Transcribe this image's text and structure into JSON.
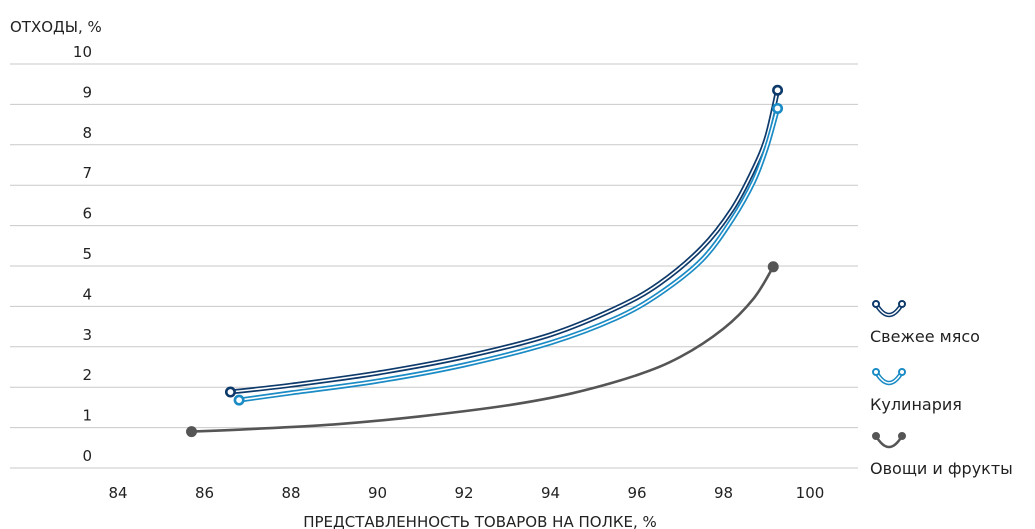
{
  "chart_data": {
    "type": "line",
    "ylabel": "ОТХОДЫ, %",
    "xlabel": "ПРЕДСТАВЛЕННОСТЬ ТОВАРОВ НА ПОЛКЕ, %",
    "xlim": [
      83,
      101
    ],
    "ylim": [
      0,
      10
    ],
    "x_ticks": [
      84,
      86,
      88,
      90,
      92,
      94,
      96,
      98,
      100
    ],
    "y_ticks": [
      0,
      1,
      2,
      3,
      4,
      5,
      6,
      7,
      8,
      9,
      10
    ],
    "y_tick_labels": [
      "0",
      "1",
      "2",
      "3",
      "4",
      "5",
      "6",
      "7",
      "8",
      "9",
      "10"
    ],
    "grid": true,
    "legend_position": "right",
    "series": [
      {
        "name": "Свежее мясо",
        "color": "#0e3a6b",
        "style": "double-line",
        "points": [
          [
            86.6,
            1.88
          ],
          [
            88,
            2.05
          ],
          [
            90,
            2.35
          ],
          [
            92,
            2.75
          ],
          [
            94,
            3.3
          ],
          [
            95.5,
            3.95
          ],
          [
            96.5,
            4.55
          ],
          [
            97.5,
            5.45
          ],
          [
            98.2,
            6.4
          ],
          [
            98.7,
            7.4
          ],
          [
            99.0,
            8.2
          ],
          [
            99.25,
            9.35
          ]
        ]
      },
      {
        "name": "Кулинария",
        "color": "#1a8bc4",
        "style": "double-line",
        "points": [
          [
            86.8,
            1.68
          ],
          [
            88,
            1.86
          ],
          [
            90,
            2.15
          ],
          [
            92,
            2.55
          ],
          [
            94,
            3.1
          ],
          [
            95.5,
            3.7
          ],
          [
            96.5,
            4.3
          ],
          [
            97.5,
            5.15
          ],
          [
            98.2,
            6.15
          ],
          [
            98.7,
            7.1
          ],
          [
            99.0,
            7.95
          ],
          [
            99.25,
            8.9
          ]
        ]
      },
      {
        "name": "Овощи и фрукты",
        "color": "#555555",
        "style": "single-line",
        "points": [
          [
            85.7,
            0.9
          ],
          [
            87,
            0.96
          ],
          [
            89,
            1.08
          ],
          [
            91,
            1.28
          ],
          [
            93,
            1.55
          ],
          [
            94.5,
            1.85
          ],
          [
            96,
            2.3
          ],
          [
            97,
            2.75
          ],
          [
            98,
            3.45
          ],
          [
            98.7,
            4.2
          ],
          [
            99.15,
            4.98
          ]
        ]
      }
    ]
  }
}
